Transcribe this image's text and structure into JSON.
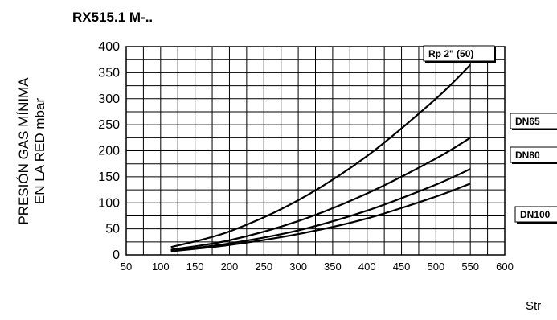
{
  "chart_data": {
    "type": "line",
    "title": "RX515.1 M-..",
    "ylabel_lines": [
      "PRESIÓN GAS MÍNIMA",
      "EN LA RED mbar"
    ],
    "xlabel": "Str",
    "xlim": [
      50,
      600
    ],
    "ylim": [
      0,
      400
    ],
    "x_ticks": [
      50,
      100,
      150,
      200,
      250,
      300,
      350,
      400,
      450,
      500,
      550,
      600
    ],
    "y_ticks": [
      0,
      50,
      100,
      150,
      200,
      250,
      300,
      350,
      400
    ],
    "grid": true,
    "series": [
      {
        "name": "Rp 2\" (50)",
        "x": [
          115,
          200,
          300,
          400,
          500,
          550
        ],
        "y": [
          15,
          45,
          105,
          190,
          300,
          365
        ]
      },
      {
        "name": "DN65",
        "x": [
          115,
          200,
          300,
          400,
          500,
          550
        ],
        "y": [
          10,
          28,
          65,
          118,
          185,
          225
        ]
      },
      {
        "name": "DN80",
        "x": [
          115,
          200,
          300,
          400,
          500,
          550
        ],
        "y": [
          8,
          22,
          47,
          85,
          135,
          165
        ]
      },
      {
        "name": "DN100",
        "x": [
          115,
          200,
          300,
          400,
          500,
          550
        ],
        "y": [
          7,
          19,
          40,
          70,
          112,
          137
        ]
      }
    ]
  }
}
